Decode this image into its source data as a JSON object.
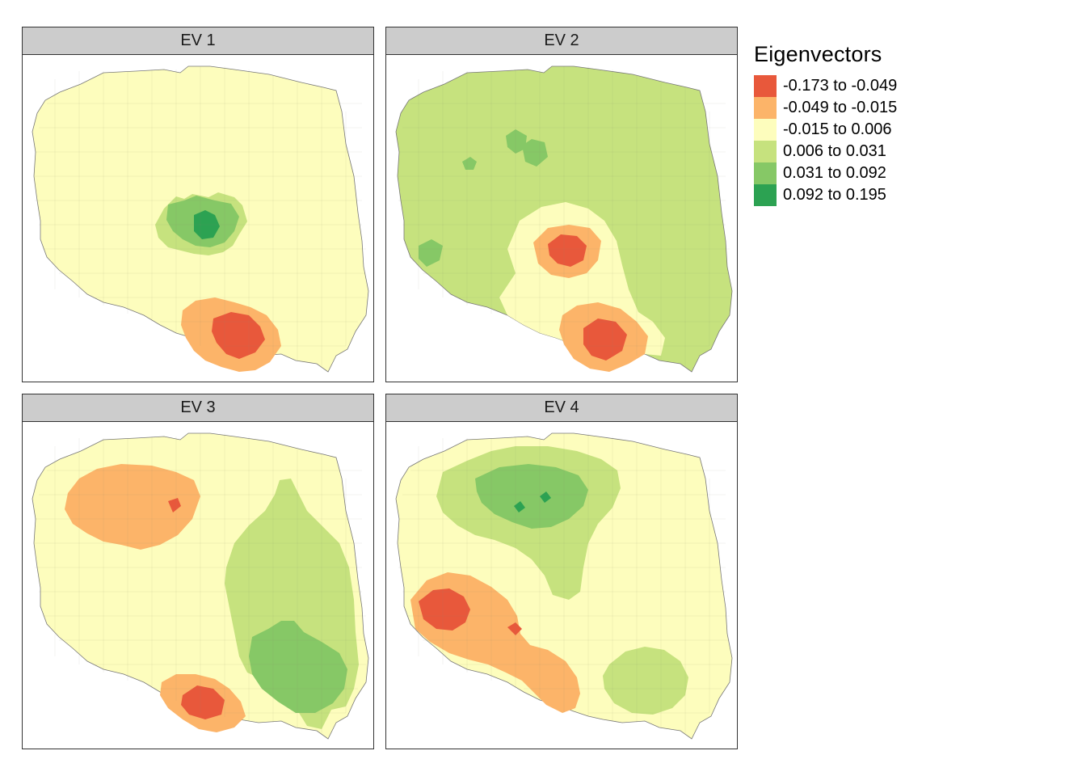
{
  "legend": {
    "title": "Eigenvectors",
    "classes": [
      {
        "label": "-0.173 to -0.049",
        "color": "#e8583b"
      },
      {
        "label": "-0.049 to -0.015",
        "color": "#fcb469"
      },
      {
        "label": "-0.015 to 0.006",
        "color": "#fdfdbd"
      },
      {
        "label": "0.006 to 0.031",
        "color": "#c6e27e"
      },
      {
        "label": "0.031 to 0.092",
        "color": "#86c866"
      },
      {
        "label": "0.092 to 0.195",
        "color": "#2ca252"
      }
    ]
  },
  "panels": [
    {
      "title": "EV 1"
    },
    {
      "title": "EV 2"
    },
    {
      "title": "EV 3"
    },
    {
      "title": "EV 4"
    }
  ],
  "colors": {
    "strip_bg": "#cccccc",
    "border": "#333333",
    "land_base": "#fdfdbd",
    "boundary_lines": "#8a8a6a"
  }
}
